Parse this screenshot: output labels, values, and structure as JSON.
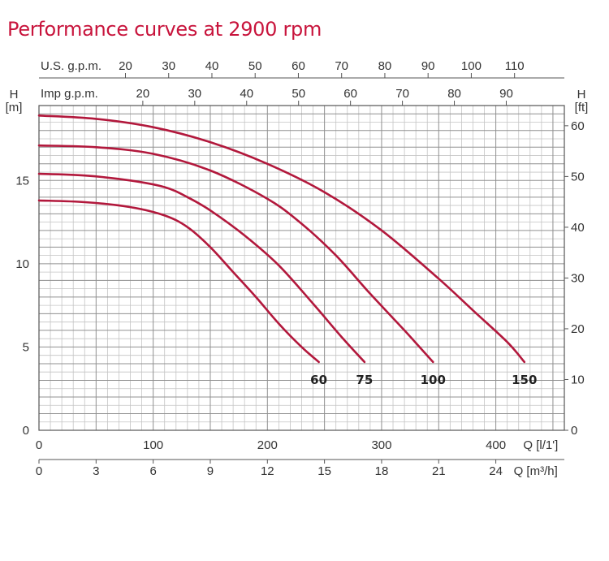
{
  "chart_data": {
    "type": "line",
    "title": "Performance curves at 2900 rpm",
    "x_label_lpm": "Q [l/1']",
    "x_label_m3h": "Q [m³/h]",
    "top_label_us": "U.S. g.p.m.",
    "top_label_imp": "Imp g.p.m.",
    "y_left_label": [
      "H",
      "[m]"
    ],
    "y_right_label": [
      "H",
      "[ft]"
    ],
    "x_ticks_lpm": [
      0,
      100,
      200,
      300,
      400
    ],
    "x_ticks_m3h": [
      0,
      3,
      6,
      9,
      12,
      15,
      18,
      21,
      24
    ],
    "us_gpm_ticks": [
      20,
      30,
      40,
      50,
      60,
      70,
      80,
      90,
      100,
      110
    ],
    "imp_gpm_ticks": [
      20,
      30,
      40,
      50,
      60,
      70,
      80,
      90
    ],
    "y_ticks_m": [
      0,
      5,
      10,
      15
    ],
    "y_ticks_ft": [
      0,
      10,
      20,
      30,
      40,
      50,
      60
    ],
    "xlim_lpm": [
      0,
      460
    ],
    "ylim_m": [
      0,
      19.5
    ],
    "grid": true,
    "curve_color": "#b2183c",
    "series": [
      {
        "name": "60",
        "points": [
          [
            0,
            13.8
          ],
          [
            40,
            13.7
          ],
          [
            80,
            13.4
          ],
          [
            110,
            12.9
          ],
          [
            130,
            12.2
          ],
          [
            150,
            11.0
          ],
          [
            170,
            9.5
          ],
          [
            190,
            8.0
          ],
          [
            210,
            6.4
          ],
          [
            230,
            5.0
          ],
          [
            245,
            4.1
          ]
        ]
      },
      {
        "name": "75",
        "points": [
          [
            0,
            15.4
          ],
          [
            40,
            15.3
          ],
          [
            80,
            15.0
          ],
          [
            110,
            14.6
          ],
          [
            130,
            14.0
          ],
          [
            150,
            13.2
          ],
          [
            180,
            11.7
          ],
          [
            210,
            9.9
          ],
          [
            240,
            7.6
          ],
          [
            265,
            5.6
          ],
          [
            285,
            4.1
          ]
        ]
      },
      {
        "name": "100",
        "points": [
          [
            0,
            17.1
          ],
          [
            50,
            17.0
          ],
          [
            100,
            16.6
          ],
          [
            150,
            15.6
          ],
          [
            200,
            13.9
          ],
          [
            230,
            12.4
          ],
          [
            260,
            10.5
          ],
          [
            290,
            8.2
          ],
          [
            320,
            6.0
          ],
          [
            345,
            4.1
          ]
        ]
      },
      {
        "name": "150",
        "points": [
          [
            0,
            18.9
          ],
          [
            50,
            18.7
          ],
          [
            100,
            18.2
          ],
          [
            150,
            17.3
          ],
          [
            200,
            16.0
          ],
          [
            250,
            14.3
          ],
          [
            300,
            12.0
          ],
          [
            350,
            9.1
          ],
          [
            380,
            7.2
          ],
          [
            410,
            5.3
          ],
          [
            425,
            4.1
          ]
        ]
      }
    ]
  }
}
